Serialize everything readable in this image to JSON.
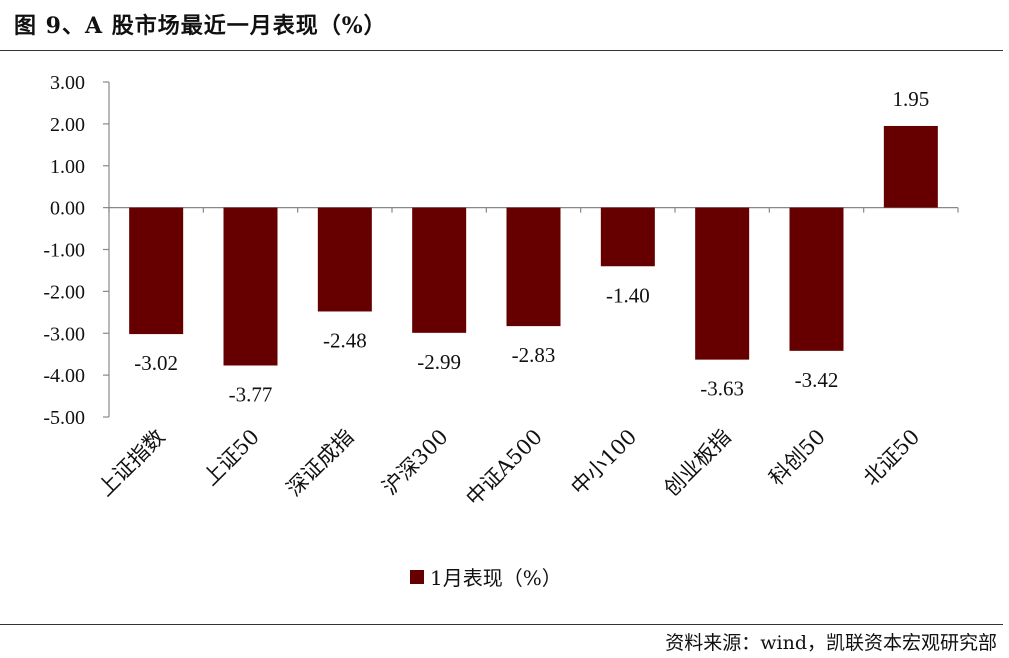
{
  "title": "图 9、A 股市场最近一月表现（%）",
  "source": "资料来源：wind，凯联资本宏观研究部",
  "colors": {
    "bar": "#660000",
    "axis": "#888888"
  },
  "chart_data": {
    "type": "bar",
    "categories": [
      "上证指数",
      "上证50",
      "深证成指",
      "沪深300",
      "中证A500",
      "中小100",
      "创业板指",
      "科创50",
      "北证50"
    ],
    "series": [
      {
        "name": "1月表现（%）",
        "values": [
          -3.02,
          -3.77,
          -2.48,
          -2.99,
          -2.83,
          -1.4,
          -3.63,
          -3.42,
          1.95
        ]
      }
    ],
    "data_labels": [
      "-3.02",
      "-3.77",
      "-2.48",
      "-2.99",
      "-2.83",
      "-1.40",
      "-3.63",
      "-3.42",
      "1.95"
    ],
    "ylim": [
      -5,
      3
    ],
    "yticks": [
      "3.00",
      "2.00",
      "1.00",
      "0.00",
      "-1.00",
      "-2.00",
      "-3.00",
      "-4.00",
      "-5.00"
    ],
    "grid": false,
    "legend": "bottom"
  }
}
